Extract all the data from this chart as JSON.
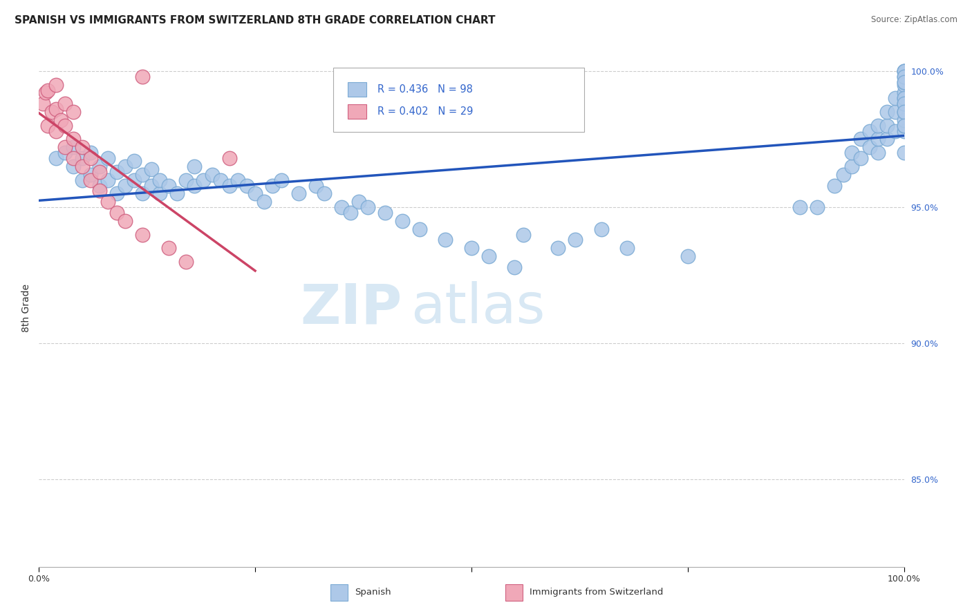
{
  "title": "SPANISH VS IMMIGRANTS FROM SWITZERLAND 8TH GRADE CORRELATION CHART",
  "source": "Source: ZipAtlas.com",
  "ylabel_label": "8th Grade",
  "legend_label1": "Spanish",
  "legend_label2": "Immigrants from Switzerland",
  "R1": 0.436,
  "N1": 98,
  "R2": 0.402,
  "N2": 29,
  "color_blue": "#adc8e8",
  "color_blue_edge": "#7baad4",
  "color_blue_line": "#2255bb",
  "color_pink": "#f0a8b8",
  "color_pink_edge": "#d06080",
  "color_pink_line": "#cc4466",
  "watermark_color": "#d8e8f4",
  "xmin": 0.0,
  "xmax": 1.0,
  "ymin": 0.818,
  "ymax": 1.008,
  "blue_scatter_x": [
    0.02,
    0.03,
    0.04,
    0.04,
    0.05,
    0.05,
    0.06,
    0.06,
    0.07,
    0.07,
    0.08,
    0.08,
    0.09,
    0.09,
    0.1,
    0.1,
    0.11,
    0.11,
    0.12,
    0.12,
    0.13,
    0.13,
    0.14,
    0.14,
    0.15,
    0.16,
    0.17,
    0.18,
    0.18,
    0.19,
    0.2,
    0.21,
    0.22,
    0.23,
    0.24,
    0.25,
    0.26,
    0.27,
    0.28,
    0.3,
    0.32,
    0.33,
    0.35,
    0.36,
    0.37,
    0.38,
    0.4,
    0.42,
    0.44,
    0.47,
    0.5,
    0.52,
    0.55,
    0.56,
    0.6,
    0.62,
    0.65,
    0.68,
    0.75,
    0.88,
    0.9,
    0.92,
    0.93,
    0.94,
    0.94,
    0.95,
    0.95,
    0.96,
    0.96,
    0.97,
    0.97,
    0.97,
    0.98,
    0.98,
    0.98,
    0.99,
    0.99,
    0.99,
    1.0,
    1.0,
    1.0,
    1.0,
    1.0,
    1.0,
    1.0,
    1.0,
    1.0,
    1.0,
    1.0,
    1.0,
    1.0,
    1.0,
    1.0,
    1.0,
    1.0,
    1.0,
    1.0,
    1.0
  ],
  "blue_scatter_y": [
    0.968,
    0.97,
    0.965,
    0.972,
    0.96,
    0.968,
    0.962,
    0.97,
    0.958,
    0.965,
    0.96,
    0.968,
    0.955,
    0.963,
    0.958,
    0.965,
    0.96,
    0.967,
    0.955,
    0.962,
    0.958,
    0.964,
    0.955,
    0.96,
    0.958,
    0.955,
    0.96,
    0.958,
    0.965,
    0.96,
    0.962,
    0.96,
    0.958,
    0.96,
    0.958,
    0.955,
    0.952,
    0.958,
    0.96,
    0.955,
    0.958,
    0.955,
    0.95,
    0.948,
    0.952,
    0.95,
    0.948,
    0.945,
    0.942,
    0.938,
    0.935,
    0.932,
    0.928,
    0.94,
    0.935,
    0.938,
    0.942,
    0.935,
    0.932,
    0.95,
    0.95,
    0.958,
    0.962,
    0.965,
    0.97,
    0.968,
    0.975,
    0.972,
    0.978,
    0.97,
    0.975,
    0.98,
    0.975,
    0.98,
    0.985,
    0.978,
    0.985,
    0.99,
    0.978,
    0.98,
    0.982,
    0.985,
    0.988,
    0.99,
    0.992,
    0.995,
    0.996,
    0.998,
    1.0,
    1.0,
    1.0,
    0.998,
    0.996,
    0.99,
    0.988,
    0.985,
    0.98,
    0.97
  ],
  "pink_scatter_x": [
    0.005,
    0.008,
    0.01,
    0.01,
    0.015,
    0.02,
    0.02,
    0.02,
    0.025,
    0.03,
    0.03,
    0.03,
    0.04,
    0.04,
    0.04,
    0.05,
    0.05,
    0.06,
    0.06,
    0.07,
    0.07,
    0.08,
    0.09,
    0.1,
    0.12,
    0.12,
    0.15,
    0.17,
    0.22
  ],
  "pink_scatter_y": [
    0.988,
    0.992,
    0.98,
    0.993,
    0.985,
    0.978,
    0.986,
    0.995,
    0.982,
    0.972,
    0.98,
    0.988,
    0.968,
    0.975,
    0.985,
    0.965,
    0.972,
    0.96,
    0.968,
    0.956,
    0.963,
    0.952,
    0.948,
    0.945,
    0.94,
    0.998,
    0.935,
    0.93,
    0.968
  ],
  "grid_color": "#cccccc",
  "bg_color": "#ffffff",
  "title_fontsize": 11,
  "tick_fontsize": 9,
  "ytick_color": "#3366cc"
}
